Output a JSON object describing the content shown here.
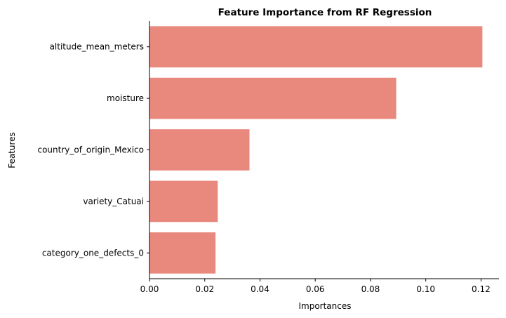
{
  "chart_data": {
    "type": "bar",
    "orientation": "horizontal",
    "title": "Feature Importance from RF Regression",
    "xlabel": "Importances",
    "ylabel": "Features",
    "categories": [
      "altitude_mean_meters",
      "moisture",
      "country_of_origin_Mexico",
      "variety_Catuai",
      "category_one_defects_0"
    ],
    "values": [
      0.1205,
      0.0893,
      0.0362,
      0.0247,
      0.0239
    ],
    "xlim": [
      0,
      0.1265
    ],
    "xticks": [
      0,
      0.02,
      0.04,
      0.06,
      0.08,
      0.1,
      0.12
    ],
    "xtick_labels": [
      "0.00",
      "0.02",
      "0.04",
      "0.06",
      "0.08",
      "0.10",
      "0.12"
    ],
    "bar_color": "#e9897e",
    "grid": false,
    "legend": "none"
  }
}
